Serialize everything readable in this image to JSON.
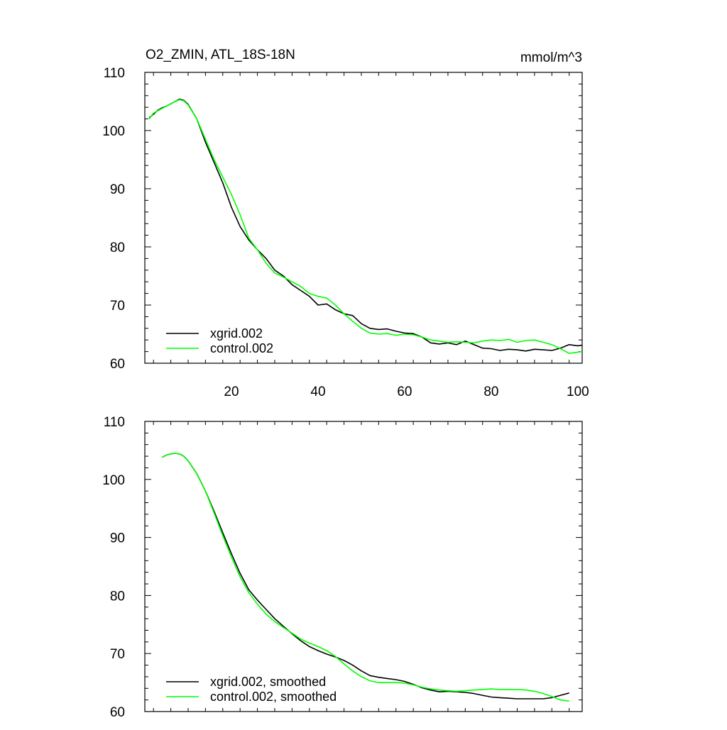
{
  "chart_data": [
    {
      "type": "line",
      "title": "O2_ZMIN, ATL_18S-18N",
      "units": "mmol/m^3",
      "xlim": [
        0,
        101
      ],
      "ylim": [
        60,
        110
      ],
      "xticks": [
        20,
        40,
        60,
        80,
        100
      ],
      "yticks": [
        60,
        70,
        80,
        90,
        100,
        110
      ],
      "xtick_labels": [
        "20",
        "40",
        "60",
        "80",
        "100"
      ],
      "ytick_labels": [
        "60",
        "70",
        "80",
        "90",
        "100",
        "110"
      ],
      "legend_position": "bottom-left",
      "series": [
        {
          "name": "xgrid.002",
          "color": "#000000",
          "x": [
            1,
            2,
            3,
            4,
            5,
            6,
            7,
            8,
            9,
            10,
            12,
            14,
            16,
            18,
            20,
            22,
            24,
            26,
            28,
            30,
            31,
            32,
            34,
            36,
            38,
            40,
            42,
            44,
            46,
            48,
            50,
            52,
            54,
            56,
            58,
            60,
            62,
            64,
            66,
            68,
            70,
            72,
            74,
            76,
            78,
            80,
            82,
            84,
            86,
            88,
            90,
            92,
            94,
            96,
            98,
            100,
            101
          ],
          "y": [
            102.2,
            102.8,
            103.5,
            103.9,
            104.2,
            104.6,
            105.0,
            105.4,
            105.2,
            104.5,
            102.0,
            98.0,
            94.5,
            91.0,
            86.8,
            83.5,
            81.2,
            79.5,
            78.0,
            76.0,
            75.5,
            75.0,
            73.5,
            72.5,
            71.5,
            70.0,
            70.2,
            69.2,
            68.5,
            68.2,
            66.8,
            66.0,
            65.8,
            65.9,
            65.5,
            65.2,
            65.1,
            64.5,
            63.5,
            63.3,
            63.5,
            63.2,
            63.8,
            63.2,
            62.6,
            62.5,
            62.2,
            62.4,
            62.3,
            62.1,
            62.4,
            62.3,
            62.2,
            62.6,
            63.2,
            63.0,
            63.1
          ]
        },
        {
          "name": "control.002",
          "color": "#00ff00",
          "x": [
            1,
            2,
            3,
            4,
            5,
            6,
            7,
            8,
            9,
            10,
            12,
            14,
            16,
            18,
            20,
            22,
            24,
            26,
            28,
            30,
            32,
            34,
            36,
            38,
            40,
            42,
            44,
            46,
            48,
            50,
            52,
            54,
            56,
            58,
            60,
            62,
            64,
            66,
            68,
            70,
            72,
            74,
            76,
            78,
            80,
            82,
            84,
            86,
            88,
            90,
            92,
            94,
            96,
            98,
            100,
            101
          ],
          "y": [
            102.0,
            103.0,
            103.4,
            103.8,
            104.2,
            104.6,
            105.0,
            105.3,
            105.1,
            104.4,
            102.0,
            98.5,
            95.0,
            92.0,
            89.0,
            85.5,
            81.5,
            79.5,
            77.2,
            75.5,
            74.8,
            74.0,
            73.2,
            72.0,
            71.5,
            71.2,
            70.0,
            68.5,
            67.2,
            66.0,
            65.2,
            65.0,
            65.1,
            64.8,
            65.0,
            64.9,
            64.5,
            64.0,
            63.8,
            63.6,
            63.7,
            63.6,
            63.5,
            63.8,
            64.0,
            63.9,
            64.1,
            63.6,
            63.9,
            64.0,
            63.6,
            63.2,
            62.5,
            61.7,
            61.9,
            62.0
          ]
        }
      ]
    },
    {
      "type": "line",
      "title": "",
      "xlim": [
        0,
        101
      ],
      "ylim": [
        60,
        110
      ],
      "xticks": [
        20,
        40,
        60,
        80,
        100
      ],
      "yticks": [
        60,
        70,
        80,
        90,
        100,
        110
      ],
      "ytick_labels": [
        "60",
        "70",
        "80",
        "90",
        "100",
        "110"
      ],
      "legend_position": "bottom-left",
      "series": [
        {
          "name": "xgrid.002, smoothed",
          "color": "#000000",
          "x": [
            4,
            5,
            6,
            7,
            8,
            9,
            10,
            12,
            14,
            16,
            18,
            20,
            22,
            24,
            26,
            28,
            30,
            32,
            34,
            36,
            38,
            40,
            42,
            44,
            46,
            48,
            50,
            52,
            54,
            56,
            58,
            60,
            62,
            64,
            66,
            68,
            70,
            72,
            74,
            76,
            78,
            80,
            82,
            84,
            86,
            88,
            90,
            92,
            94,
            96,
            98
          ],
          "y": [
            103.8,
            104.2,
            104.4,
            104.5,
            104.4,
            104.0,
            103.2,
            101.0,
            98.0,
            94.5,
            90.8,
            87.2,
            83.8,
            81.0,
            79.2,
            77.6,
            76.0,
            74.7,
            73.4,
            72.2,
            71.2,
            70.5,
            69.9,
            69.4,
            68.8,
            68.0,
            67.0,
            66.2,
            65.9,
            65.7,
            65.5,
            65.2,
            64.7,
            64.1,
            63.7,
            63.4,
            63.5,
            63.4,
            63.3,
            63.1,
            62.8,
            62.5,
            62.4,
            62.3,
            62.2,
            62.2,
            62.2,
            62.2,
            62.4,
            62.8,
            63.2
          ]
        },
        {
          "name": "control.002, smoothed",
          "color": "#00ff00",
          "x": [
            4,
            5,
            6,
            7,
            8,
            9,
            10,
            12,
            14,
            16,
            18,
            20,
            22,
            24,
            26,
            28,
            30,
            32,
            34,
            36,
            38,
            40,
            42,
            44,
            46,
            48,
            50,
            52,
            54,
            56,
            58,
            60,
            62,
            64,
            66,
            68,
            70,
            72,
            74,
            76,
            78,
            80,
            82,
            84,
            86,
            88,
            90,
            92,
            94,
            96,
            98
          ],
          "y": [
            103.8,
            104.2,
            104.4,
            104.5,
            104.4,
            104.0,
            103.2,
            101.0,
            98.0,
            94.2,
            90.3,
            86.6,
            83.2,
            80.5,
            78.5,
            76.8,
            75.5,
            74.5,
            73.5,
            72.5,
            71.8,
            71.2,
            70.5,
            69.5,
            68.2,
            67.0,
            66.0,
            65.3,
            65.0,
            65.0,
            65.0,
            64.9,
            64.6,
            64.2,
            63.9,
            63.7,
            63.6,
            63.5,
            63.6,
            63.7,
            63.8,
            63.9,
            63.8,
            63.8,
            63.8,
            63.7,
            63.5,
            63.1,
            62.6,
            62.0,
            61.8
          ]
        }
      ]
    }
  ]
}
